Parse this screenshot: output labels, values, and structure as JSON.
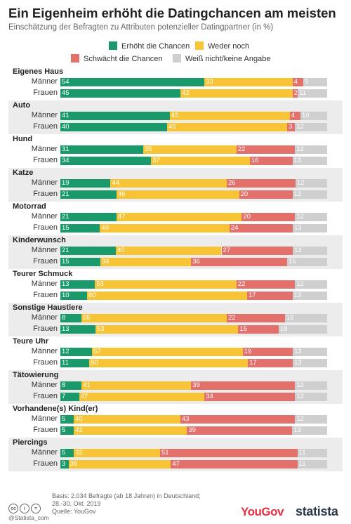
{
  "title": "Ein Eigenheim erhöht die Datingchancen am meisten",
  "subtitle": "Einschätzung der Befragten zu Attributen potenzieller Datingpartner (in %)",
  "legend": [
    {
      "label": "Erhöht die Chancen",
      "color": "#1a9a6a"
    },
    {
      "label": "Weder noch",
      "color": "#f7c436"
    },
    {
      "label": "Schwächt die Chancen",
      "color": "#e3706a"
    },
    {
      "label": "Weiß nicht/keine Angabe",
      "color": "#cfcfcf"
    }
  ],
  "chart_data": {
    "type": "bar",
    "stacked": true,
    "orientation": "horizontal",
    "title": "Ein Eigenheim erhöht die Datingchancen am meisten",
    "subtitle": "Einschätzung der Befragten zu Attributen potenzieller Datingpartner (in %)",
    "series_names": [
      "Erhöht die Chancen",
      "Weder noch",
      "Schwächt die Chancen",
      "Weiß nicht/keine Angabe"
    ],
    "colors": [
      "#1a9a6a",
      "#f7c436",
      "#e3706a",
      "#cfcfcf"
    ],
    "groups": [
      {
        "category": "Eigenes Haus",
        "rows": [
          {
            "label": "Männer",
            "values": [
              54,
              33,
              4,
              9
            ]
          },
          {
            "label": "Frauen",
            "values": [
              45,
              42,
              2,
              11
            ]
          }
        ]
      },
      {
        "category": "Auto",
        "rows": [
          {
            "label": "Männer",
            "values": [
              41,
              45,
              4,
              10
            ]
          },
          {
            "label": "Frauen",
            "values": [
              40,
              45,
              3,
              12
            ]
          }
        ]
      },
      {
        "category": "Hund",
        "rows": [
          {
            "label": "Männer",
            "values": [
              31,
              35,
              22,
              12
            ]
          },
          {
            "label": "Frauen",
            "values": [
              34,
              37,
              16,
              13
            ]
          }
        ]
      },
      {
        "category": "Katze",
        "rows": [
          {
            "label": "Männer",
            "values": [
              19,
              44,
              26,
              12
            ]
          },
          {
            "label": "Frauen",
            "values": [
              21,
              46,
              20,
              13
            ]
          }
        ]
      },
      {
        "category": "Motorrad",
        "rows": [
          {
            "label": "Männer",
            "values": [
              21,
              47,
              20,
              12
            ]
          },
          {
            "label": "Frauen",
            "values": [
              15,
              49,
              24,
              13
            ]
          }
        ]
      },
      {
        "category": "Kinderwunsch",
        "rows": [
          {
            "label": "Männer",
            "values": [
              21,
              40,
              27,
              13
            ]
          },
          {
            "label": "Frauen",
            "values": [
              15,
              34,
              36,
              15
            ]
          }
        ]
      },
      {
        "category": "Teurer Schmuck",
        "rows": [
          {
            "label": "Männer",
            "values": [
              13,
              53,
              22,
              12
            ]
          },
          {
            "label": "Frauen",
            "values": [
              10,
              60,
              17,
              13
            ]
          }
        ]
      },
      {
        "category": "Sonstige Haustiere",
        "rows": [
          {
            "label": "Männer",
            "values": [
              8,
              55,
              22,
              16
            ]
          },
          {
            "label": "Frauen",
            "values": [
              13,
              53,
              15,
              18
            ]
          }
        ]
      },
      {
        "category": "Teure Uhr",
        "rows": [
          {
            "label": "Männer",
            "values": [
              12,
              57,
              19,
              13
            ]
          },
          {
            "label": "Frauen",
            "values": [
              11,
              60,
              17,
              13
            ]
          }
        ]
      },
      {
        "category": "Tätowierung",
        "rows": [
          {
            "label": "Männer",
            "values": [
              8,
              41,
              39,
              12
            ]
          },
          {
            "label": "Frauen",
            "values": [
              7,
              47,
              34,
              12
            ]
          }
        ]
      },
      {
        "category": "Vorhandene(s) Kind(er)",
        "rows": [
          {
            "label": "Männer",
            "values": [
              5,
              40,
              43,
              12
            ]
          },
          {
            "label": "Frauen",
            "values": [
              5,
              42,
              39,
              13
            ]
          }
        ]
      },
      {
        "category": "Piercings",
        "rows": [
          {
            "label": "Männer",
            "values": [
              5,
              32,
              51,
              11
            ]
          },
          {
            "label": "Frauen",
            "values": [
              3,
              38,
              47,
              11
            ]
          }
        ]
      }
    ]
  },
  "footer": {
    "basis_line1": "Basis: 2.034 Befragte (ab 18 Jahren) in Deutschland;",
    "basis_line2": "28.-30. Okt. 2019",
    "source": "Quelle: YouGov",
    "handle": "@Statista_com",
    "cc_icons": [
      "cc-icon",
      "by-icon",
      "nd-icon"
    ]
  },
  "brand": {
    "yougov": "YouGov",
    "statista": "statista"
  }
}
